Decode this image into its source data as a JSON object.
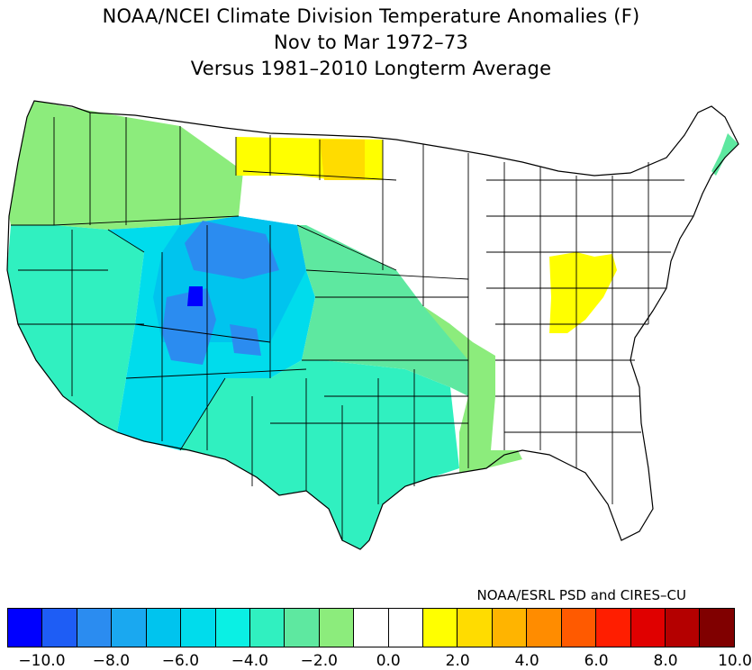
{
  "title": {
    "line1": "NOAA/NCEI Climate Division Temperature Anomalies (F)",
    "line2": "Nov to Mar 1972–73",
    "line3": "Versus 1981–2010 Longterm Average"
  },
  "credit": "NOAA/ESRL PSD and CIRES–CU",
  "legend": {
    "colors": [
      "#0000ff",
      "#1e5df5",
      "#2b8cf0",
      "#1aa8f0",
      "#00c4ee",
      "#00dcec",
      "#0af0e4",
      "#30f0c0",
      "#5ee8a0",
      "#8cec7c",
      "#ffffff",
      "#ffffff",
      "#ffff00",
      "#ffdc00",
      "#ffb400",
      "#ff8c00",
      "#ff5a00",
      "#ff1e00",
      "#e00000",
      "#b40000",
      "#800000"
    ],
    "tick_labels": [
      "−10.0",
      "−8.0",
      "−6.0",
      "−4.0",
      "−2.0",
      "0.0",
      "2.0",
      "4.0",
      "6.0",
      "8.0",
      "10.0"
    ]
  },
  "map_colors": {
    "pacific_nw": "#8cec7c",
    "west_coast": "#30f0c0",
    "great_basin": "#00dcec",
    "central_rockies": "#00c4ee",
    "cold_core": "#2b8cf0",
    "darkest": "#0000ff",
    "southern_plains": "#30f0c0",
    "central_plains": "#5ee8a0",
    "mississippi": "#8cec7c",
    "northern_plains_warm": "#ffff00",
    "north_dakota_warm": "#ffdc00",
    "ohio_valley_warm": "#ffff00",
    "new_england_coast": "#5ee8a0",
    "neutral": "#ffffff"
  }
}
